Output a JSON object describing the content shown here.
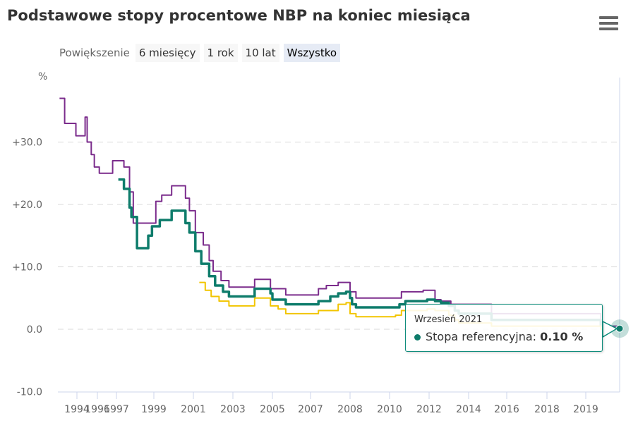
{
  "title": "Podstawowe stopy procentowe NBP na koniec miesiąca",
  "menu_icon": "hamburger-menu-icon",
  "zoom": {
    "label": "Powiększenie",
    "buttons": [
      "6 miesięcy",
      "1 rok",
      "10 lat",
      "Wszystko"
    ],
    "selected": "Wszystko"
  },
  "tooltip": {
    "date": "Wrzesień 2021",
    "series": "Stopa referencyjna:",
    "value": "0.10 %",
    "color": "#0e7c6b"
  },
  "chart_data": {
    "type": "line",
    "step": true,
    "yunit_label": "%",
    "ylim": [
      -10,
      37
    ],
    "yticks": [
      -10,
      0,
      10,
      20,
      30
    ],
    "ytick_labels": [
      "-10.0",
      "0.0",
      "+10.0",
      "+20.0",
      "+30.0"
    ],
    "xtick_labels": [
      "1994",
      "1996",
      "1997",
      "1999",
      "2001",
      "2003",
      "2005",
      "2007",
      "2008",
      "2010",
      "2012",
      "2014",
      "2016",
      "2018",
      "2019"
    ],
    "grid": true,
    "series": [
      {
        "color": "#7b2c8c",
        "points": [
          [
            1992.3,
            37
          ],
          [
            1992.8,
            33
          ],
          [
            1993.9,
            31
          ],
          [
            1994.8,
            34
          ],
          [
            1995.0,
            30
          ],
          [
            1995.4,
            28
          ],
          [
            1995.7,
            26
          ],
          [
            1996.1,
            25
          ],
          [
            1996.8,
            27
          ],
          [
            1997.4,
            26
          ],
          [
            1997.7,
            22
          ],
          [
            1997.9,
            17
          ],
          [
            1999.1,
            20.5
          ],
          [
            1999.4,
            21.5
          ],
          [
            1999.9,
            23
          ],
          [
            2000.6,
            21
          ],
          [
            2000.8,
            19
          ],
          [
            2001.1,
            15.5
          ],
          [
            2001.5,
            13.5
          ],
          [
            2001.8,
            11
          ],
          [
            2002.0,
            9.3
          ],
          [
            2002.4,
            7.8
          ],
          [
            2002.8,
            6.75
          ],
          [
            2004.1,
            8
          ],
          [
            2004.9,
            6.5
          ],
          [
            2005.7,
            5.5
          ],
          [
            2007.2,
            6.5
          ],
          [
            2007.4,
            7
          ],
          [
            2007.7,
            7.5
          ],
          [
            2008.0,
            6
          ],
          [
            2008.3,
            5
          ],
          [
            2010.6,
            6
          ],
          [
            2011.7,
            6.25
          ],
          [
            2012.3,
            4.75
          ],
          [
            2012.6,
            4.5
          ],
          [
            2013.1,
            4
          ],
          [
            2015.2,
            2.5
          ],
          [
            2020.2,
            1.0
          ],
          [
            2020.4,
            0.5
          ],
          [
            2021.7,
            0.5
          ]
        ]
      },
      {
        "name": "Stopa referencyjna",
        "color": "#0e7c6b",
        "points": [
          [
            1997.1,
            24
          ],
          [
            1997.4,
            22.5
          ],
          [
            1997.7,
            19.5
          ],
          [
            1997.8,
            18
          ],
          [
            1998.1,
            13
          ],
          [
            1998.7,
            15
          ],
          [
            1998.9,
            16.5
          ],
          [
            1999.3,
            17.5
          ],
          [
            1999.9,
            19
          ],
          [
            2000.6,
            17
          ],
          [
            2000.8,
            15.5
          ],
          [
            2001.1,
            12.5
          ],
          [
            2001.4,
            10.5
          ],
          [
            2001.8,
            8.5
          ],
          [
            2002.1,
            7
          ],
          [
            2002.5,
            6
          ],
          [
            2002.8,
            5.25
          ],
          [
            2004.1,
            6.5
          ],
          [
            2004.9,
            5.75
          ],
          [
            2005.0,
            4.75
          ],
          [
            2005.7,
            4
          ],
          [
            2007.2,
            4.5
          ],
          [
            2007.5,
            5.25
          ],
          [
            2007.7,
            5.75
          ],
          [
            2007.9,
            6
          ],
          [
            2008.0,
            5
          ],
          [
            2008.1,
            4
          ],
          [
            2008.3,
            3.5
          ],
          [
            2010.5,
            4
          ],
          [
            2010.8,
            4.5
          ],
          [
            2011.9,
            4.75
          ],
          [
            2012.3,
            4.5
          ],
          [
            2012.6,
            4.25
          ],
          [
            2013.0,
            3.75
          ],
          [
            2013.3,
            3
          ],
          [
            2013.5,
            2.5
          ],
          [
            2015.2,
            1.5
          ],
          [
            2020.2,
            0.5
          ],
          [
            2020.4,
            0.1
          ],
          [
            2021.7,
            0.1
          ]
        ]
      },
      {
        "color": "#f2c500",
        "points": [
          [
            2001.3,
            7.5
          ],
          [
            2001.6,
            6.25
          ],
          [
            2001.9,
            5.25
          ],
          [
            2002.3,
            4.5
          ],
          [
            2002.8,
            3.75
          ],
          [
            2004.1,
            5
          ],
          [
            2004.9,
            3.75
          ],
          [
            2005.3,
            3.25
          ],
          [
            2005.7,
            2.5
          ],
          [
            2007.2,
            3
          ],
          [
            2007.7,
            4
          ],
          [
            2007.9,
            4.25
          ],
          [
            2008.0,
            2.5
          ],
          [
            2008.3,
            2
          ],
          [
            2010.3,
            2.25
          ],
          [
            2010.6,
            3
          ],
          [
            2011.9,
            3.25
          ],
          [
            2012.3,
            3
          ],
          [
            2013.0,
            2.25
          ],
          [
            2013.3,
            1.5
          ],
          [
            2013.5,
            1.0
          ],
          [
            2015.2,
            0.5
          ],
          [
            2020.2,
            0.0
          ],
          [
            2021.7,
            0.0
          ]
        ]
      }
    ]
  }
}
